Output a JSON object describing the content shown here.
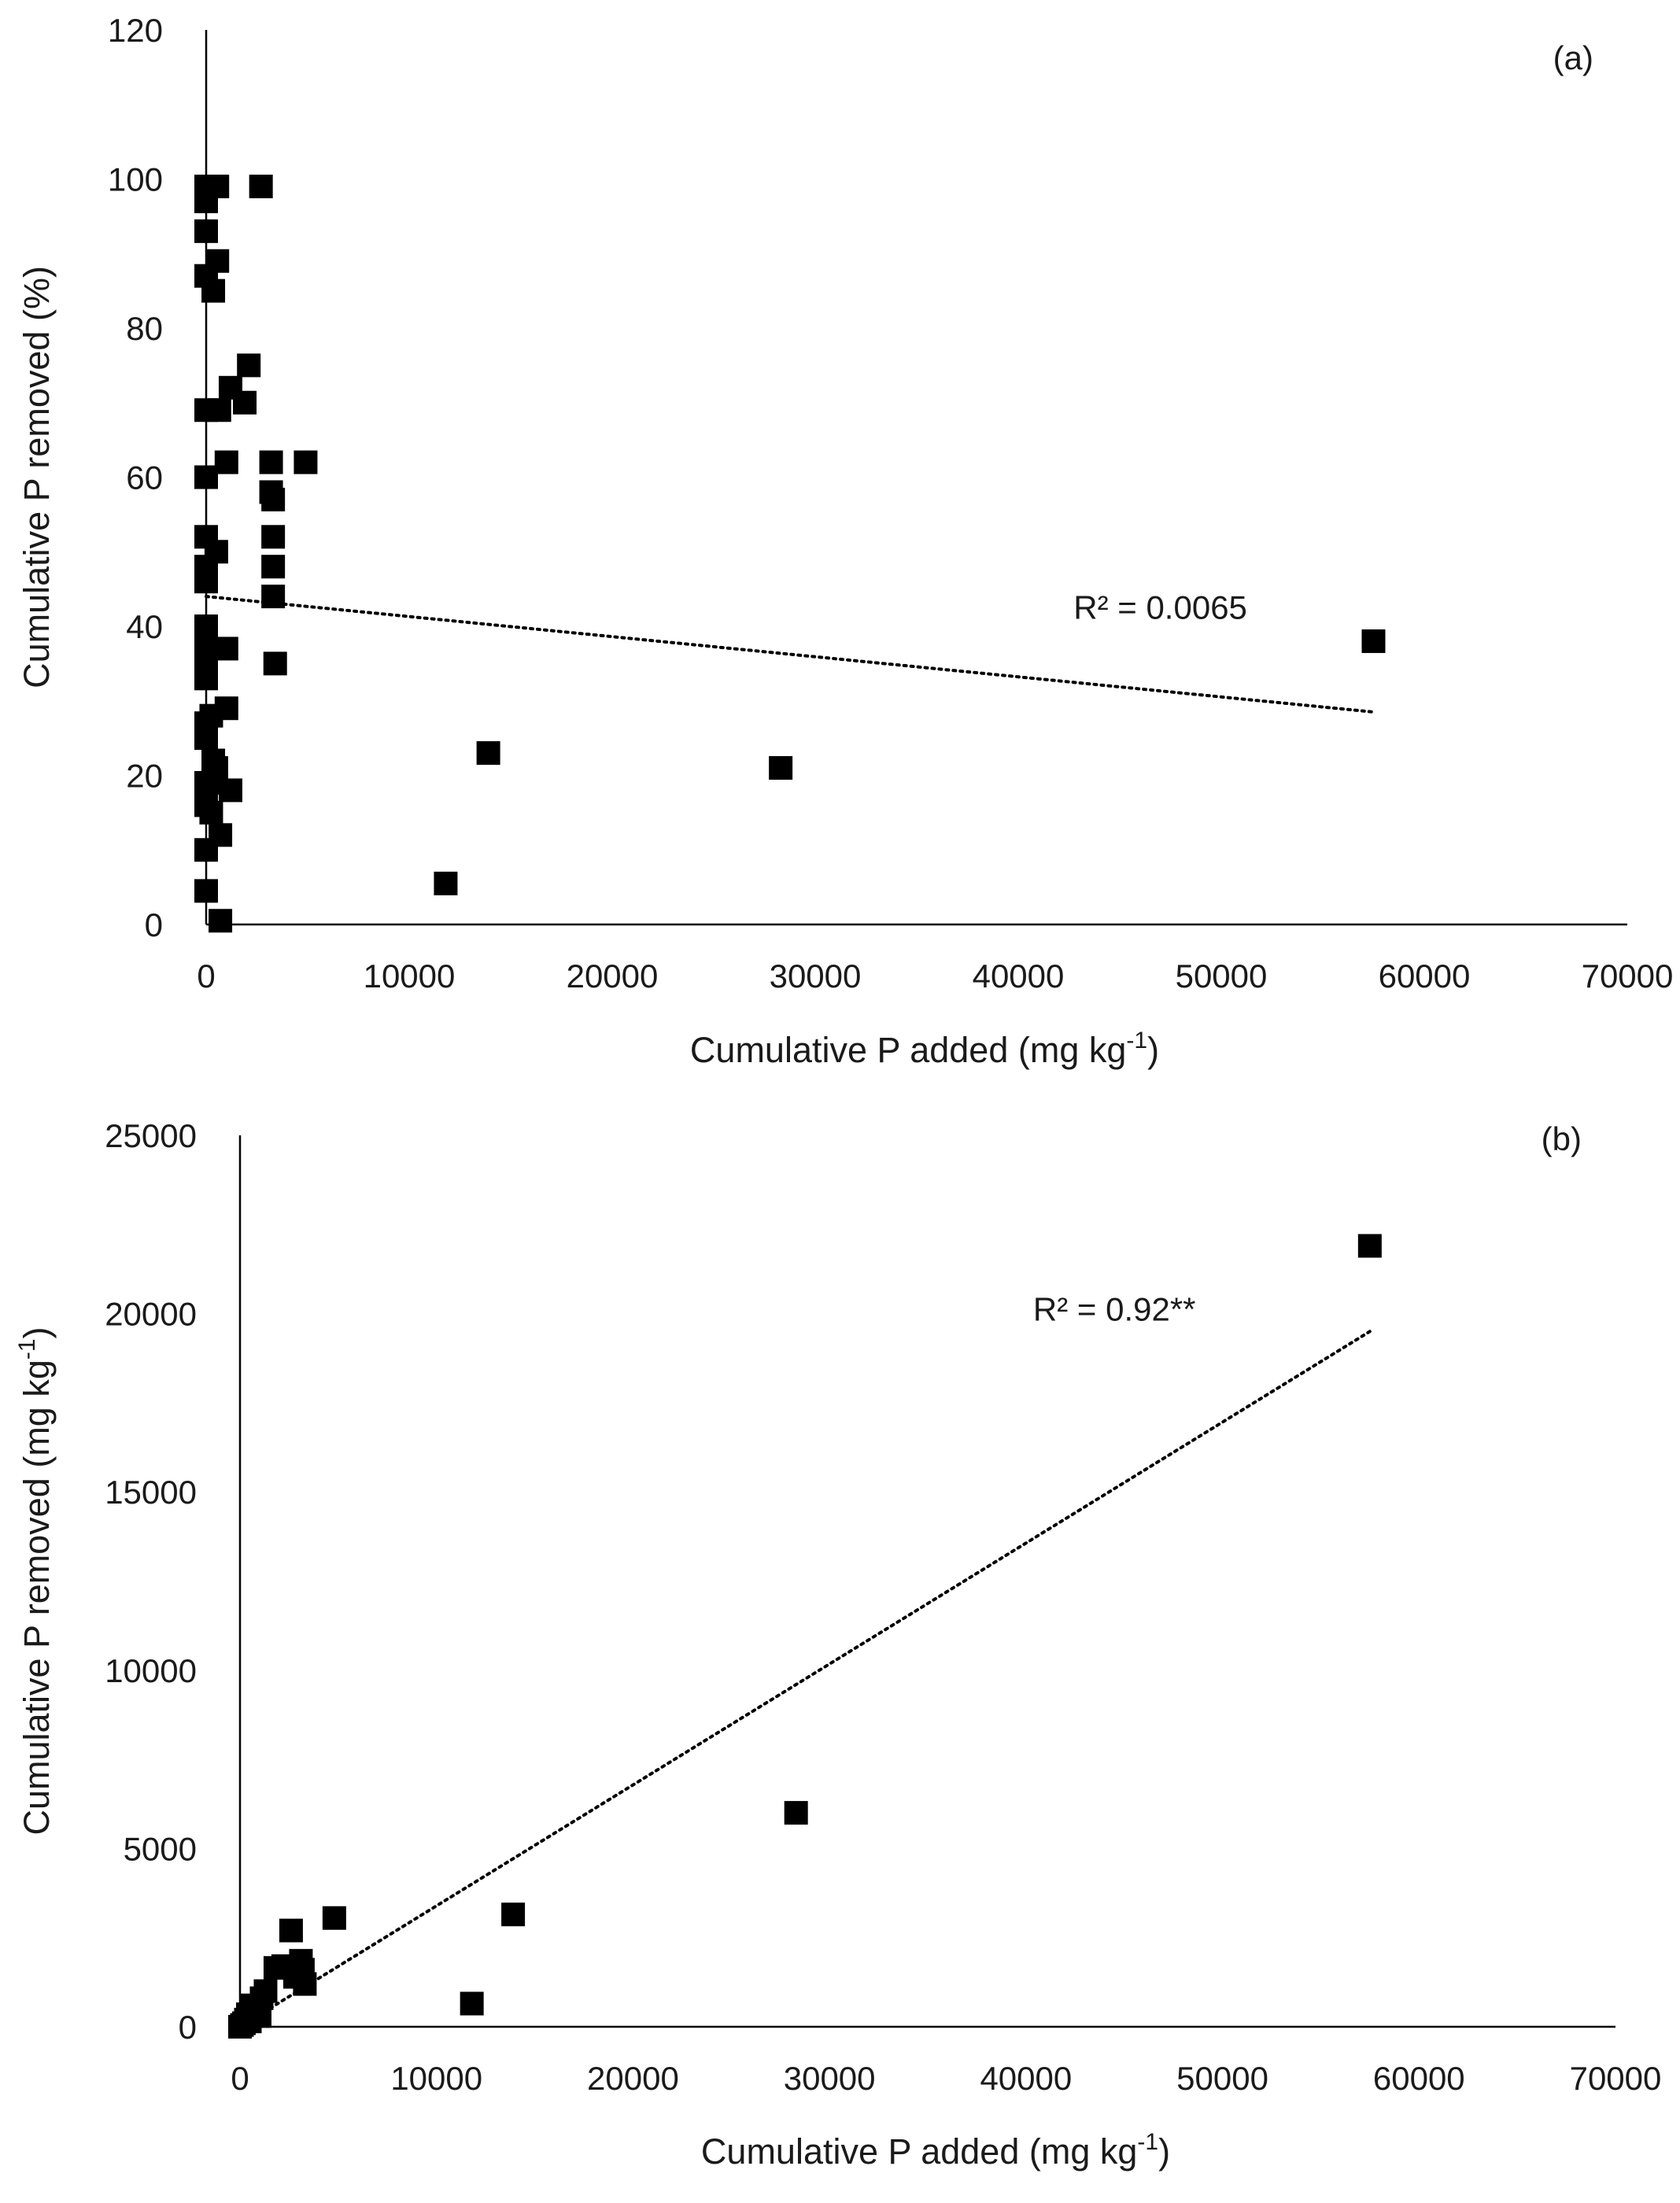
{
  "chart_data": [
    {
      "type": "scatter",
      "panel_label": "(a)",
      "xlabel": "Cumulative P added (mg kg",
      "xlabel_sup": "-1",
      "xlabel_end": ")",
      "ylabel": "Cumulative P removed (%)",
      "xlim": [
        0,
        70000
      ],
      "ylim": [
        0,
        120
      ],
      "x_ticks": [
        0,
        10000,
        20000,
        30000,
        40000,
        50000,
        60000,
        70000
      ],
      "x_tick_labels": [
        "0",
        "10000",
        "20000",
        "30000",
        "40000",
        "50000",
        "60000",
        "70000"
      ],
      "y_ticks": [
        0,
        20,
        40,
        60,
        80,
        100,
        120
      ],
      "y_tick_labels": [
        "0",
        "20",
        "40",
        "60",
        "80",
        "100",
        "120"
      ],
      "grid": false,
      "legend": "none",
      "marker_color": "#000000",
      "annotation": "R² = 0.0065",
      "annotation_at": [
        47000,
        41
      ],
      "trendline": {
        "style": "dotted",
        "x": [
          0,
          57500
        ],
        "y": [
          44,
          28.5
        ]
      },
      "points": [
        [
          0,
          99
        ],
        [
          0,
          97
        ],
        [
          550,
          99
        ],
        [
          2700,
          99
        ],
        [
          0,
          93
        ],
        [
          0,
          87
        ],
        [
          550,
          89
        ],
        [
          350,
          85
        ],
        [
          2100,
          75
        ],
        [
          1200,
          72
        ],
        [
          1900,
          70
        ],
        [
          0,
          69
        ],
        [
          650,
          69
        ],
        [
          1000,
          62
        ],
        [
          3200,
          62
        ],
        [
          4900,
          62
        ],
        [
          0,
          60
        ],
        [
          3200,
          58
        ],
        [
          3300,
          57
        ],
        [
          0,
          52
        ],
        [
          3300,
          52
        ],
        [
          500,
          50
        ],
        [
          0,
          48
        ],
        [
          3300,
          48
        ],
        [
          0,
          46
        ],
        [
          3300,
          44
        ],
        [
          0,
          40
        ],
        [
          0,
          38
        ],
        [
          0,
          36
        ],
        [
          1000,
          37
        ],
        [
          3400,
          35
        ],
        [
          0,
          33
        ],
        [
          0,
          35
        ],
        [
          1000,
          29
        ],
        [
          0,
          27
        ],
        [
          0,
          25
        ],
        [
          250,
          28
        ],
        [
          350,
          22
        ],
        [
          500,
          21
        ],
        [
          0,
          19
        ],
        [
          0,
          18
        ],
        [
          1200,
          18
        ],
        [
          500,
          19
        ],
        [
          0,
          16
        ],
        [
          250,
          15
        ],
        [
          700,
          12
        ],
        [
          0,
          10
        ],
        [
          0,
          4.5
        ],
        [
          700,
          0.5
        ],
        [
          11800,
          5.5
        ],
        [
          13900,
          23
        ],
        [
          28300,
          21
        ],
        [
          57500,
          38
        ]
      ]
    },
    {
      "type": "scatter",
      "panel_label": "(b)",
      "xlabel": "Cumulative P added (mg kg",
      "xlabel_sup": "-1",
      "xlabel_end": ")",
      "ylabel": "Cumulative P removed (mg kg",
      "ylabel_sup": "-1",
      "ylabel_end": ")",
      "xlim": [
        0,
        70000
      ],
      "ylim": [
        0,
        25000
      ],
      "x_ticks": [
        0,
        10000,
        20000,
        30000,
        40000,
        50000,
        60000,
        70000
      ],
      "x_tick_labels": [
        "0",
        "10000",
        "20000",
        "30000",
        "40000",
        "50000",
        "60000",
        "70000"
      ],
      "y_ticks": [
        0,
        5000,
        10000,
        15000,
        20000,
        25000
      ],
      "y_tick_labels": [
        "0",
        "5000",
        "10000",
        "15000",
        "20000",
        "25000"
      ],
      "grid": false,
      "legend": "none",
      "marker_color": "#000000",
      "annotation": "R² = 0.92**",
      "annotation_at": [
        44500,
        19800
      ],
      "trendline": {
        "style": "dotted",
        "x": [
          0,
          57500
        ],
        "y": [
          0,
          19500
        ]
      },
      "points": [
        [
          57500,
          21900
        ],
        [
          28300,
          6000
        ],
        [
          13900,
          3150
        ],
        [
          11800,
          650
        ],
        [
          4800,
          3050
        ],
        [
          2600,
          2700
        ],
        [
          1800,
          1650
        ],
        [
          2200,
          1700
        ],
        [
          3100,
          1850
        ],
        [
          3200,
          1600
        ],
        [
          3300,
          1200
        ],
        [
          2800,
          1400
        ],
        [
          1300,
          1000
        ],
        [
          1100,
          800
        ],
        [
          600,
          600
        ],
        [
          800,
          400
        ],
        [
          300,
          200
        ],
        [
          500,
          150
        ],
        [
          200,
          100
        ],
        [
          100,
          50
        ],
        [
          0,
          0
        ],
        [
          1000,
          300
        ],
        [
          700,
          500
        ],
        [
          400,
          350
        ]
      ]
    }
  ]
}
